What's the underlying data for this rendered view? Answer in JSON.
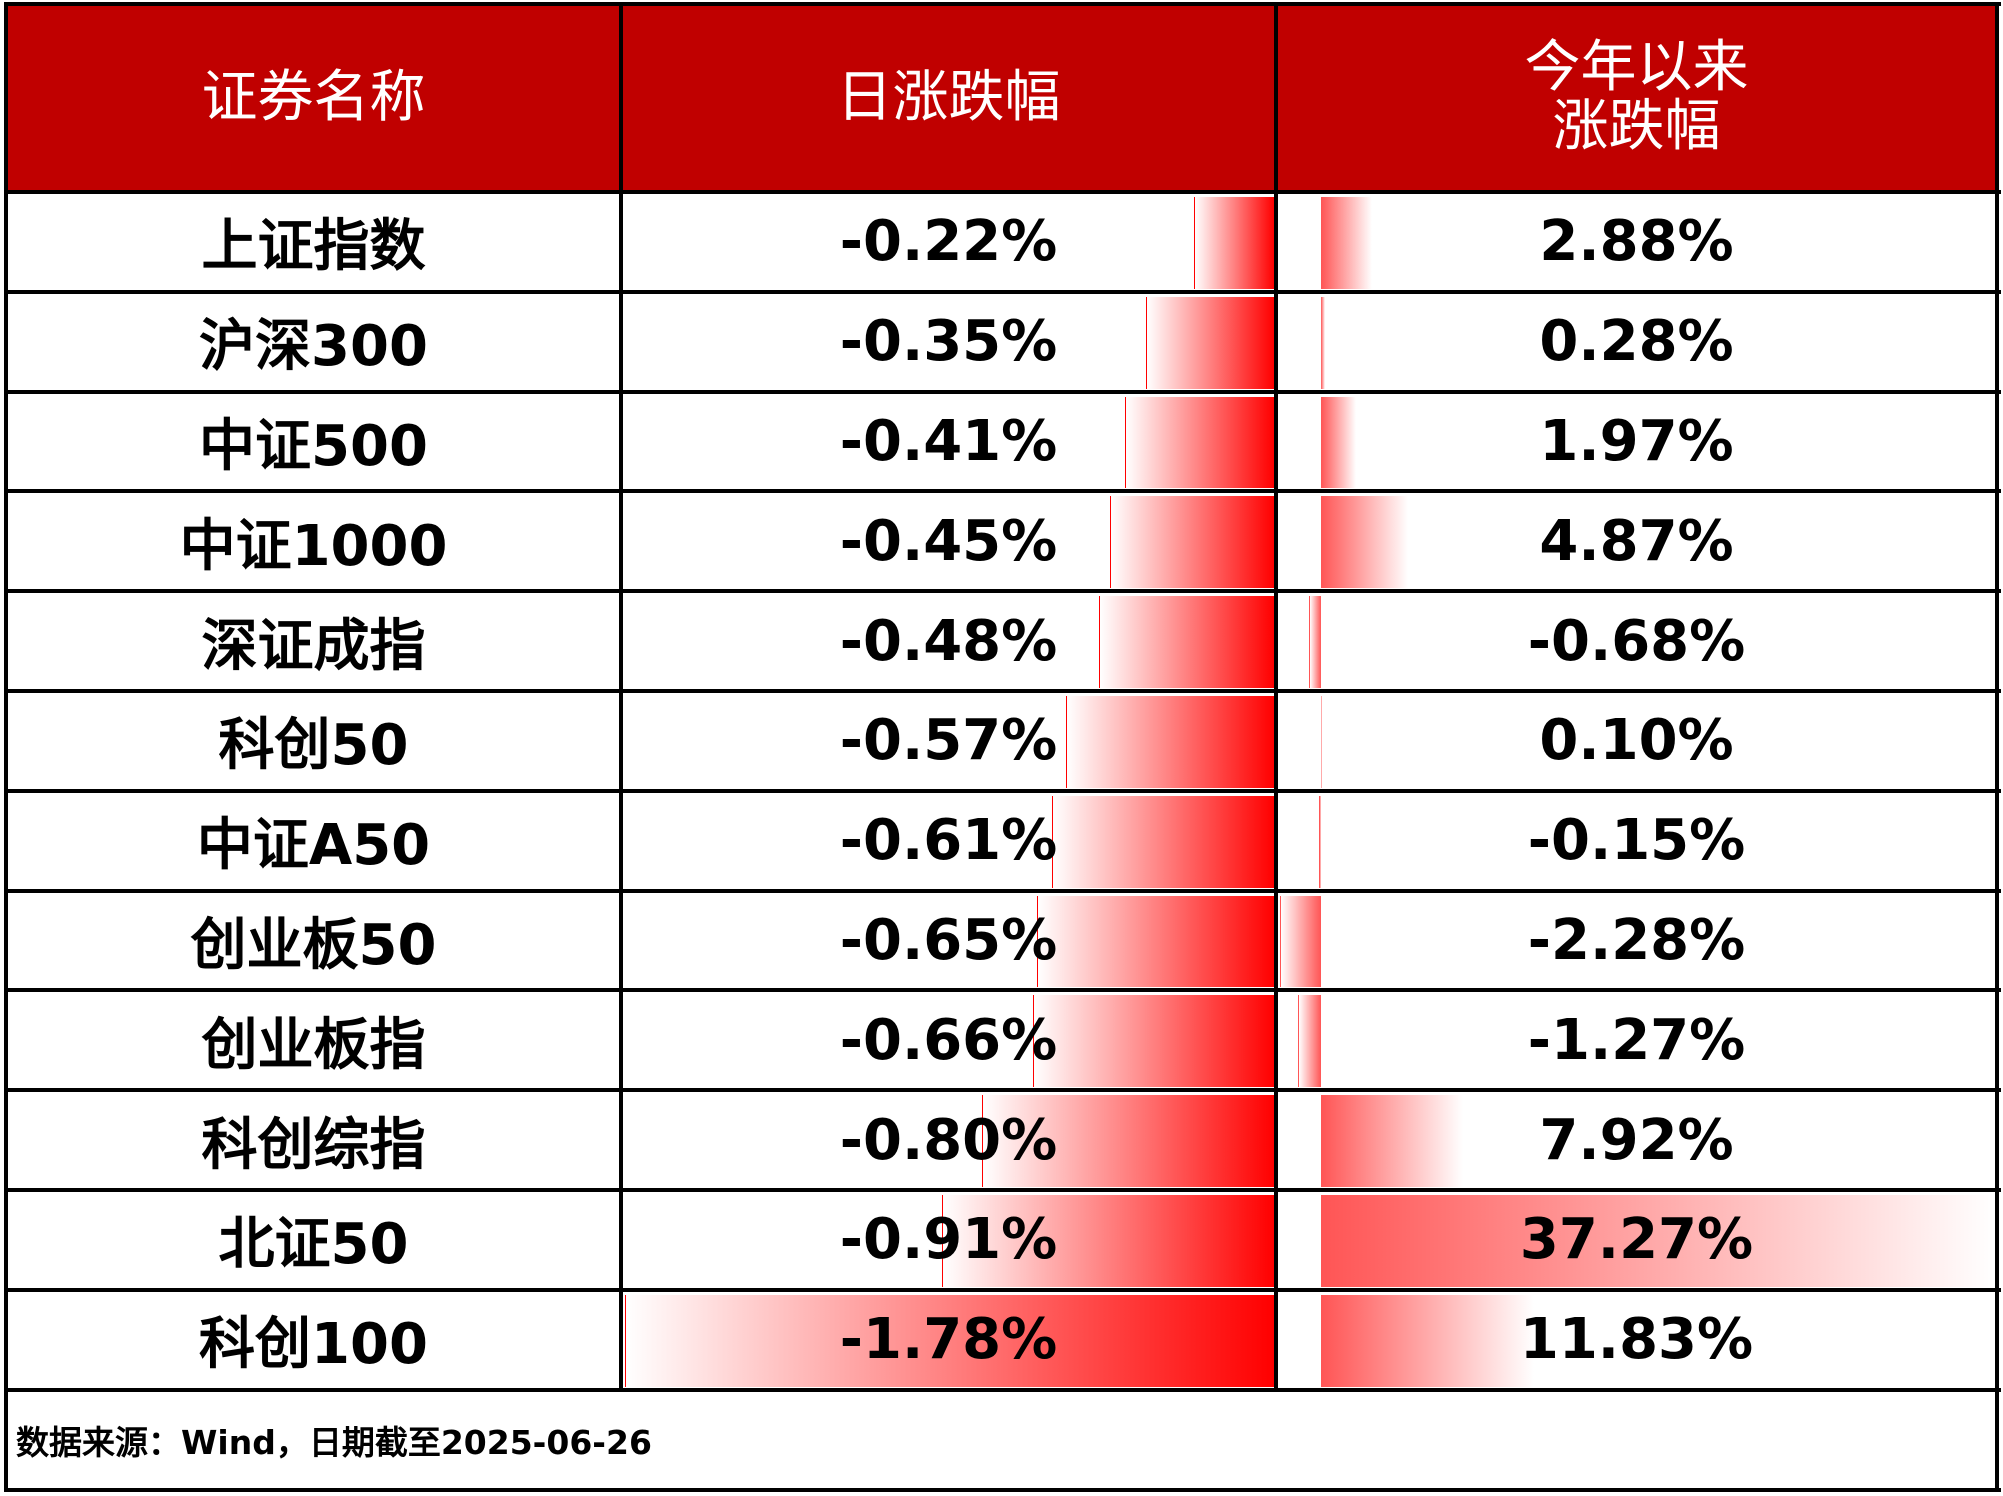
{
  "table": {
    "header": [
      "证券名称",
      "日涨跌幅",
      [
        "今年以来",
        "涨跌幅"
      ]
    ],
    "rows": [
      [
        "上证指数",
        "-0.22%",
        "2.88%"
      ],
      [
        "沪深300",
        "-0.35%",
        "0.28%"
      ],
      [
        "中证500",
        "-0.41%",
        "1.97%"
      ],
      [
        "中证1000",
        "-0.45%",
        "4.87%"
      ],
      [
        "深证成指",
        "-0.48%",
        "-0.68%"
      ],
      [
        "科创50",
        "-0.57%",
        "0.10%"
      ],
      [
        "中证A50",
        "-0.61%",
        "-0.15%"
      ],
      [
        "创业板50",
        "-0.65%",
        "-2.28%"
      ],
      [
        "创业板指",
        "-0.66%",
        "-1.27%"
      ],
      [
        "科创综指",
        "-0.80%",
        "7.92%"
      ],
      [
        "北证50",
        "-0.91%",
        "37.27%"
      ],
      [
        "科创100",
        "-1.78%",
        "11.83%"
      ]
    ],
    "footer": "数据来源：Wind，日期截至2025-06-26"
  }
}
